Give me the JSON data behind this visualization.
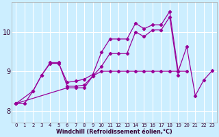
{
  "xlabel": "Windchill (Refroidissement éolien,°C)",
  "background_color": "#cceeff",
  "grid_color": "#ffffff",
  "line_color": "#990099",
  "xlim": [
    -0.5,
    23.5
  ],
  "ylim": [
    7.7,
    10.75
  ],
  "yticks": [
    8,
    9,
    10
  ],
  "xticks": [
    0,
    1,
    2,
    3,
    4,
    5,
    6,
    7,
    8,
    9,
    10,
    11,
    12,
    13,
    14,
    15,
    16,
    17,
    18,
    19,
    20,
    21,
    22,
    23
  ],
  "series": [
    {
      "x": [
        0,
        1,
        2,
        3,
        4,
        5,
        6,
        7,
        8,
        9,
        10,
        11,
        12,
        13,
        14,
        15,
        16,
        17,
        18,
        19
      ],
      "y": [
        8.18,
        8.18,
        8.5,
        8.9,
        9.2,
        9.2,
        8.72,
        8.75,
        8.8,
        8.92,
        9.48,
        9.82,
        9.82,
        9.82,
        10.22,
        10.08,
        10.18,
        10.18,
        10.52,
        9.0
      ]
    },
    {
      "x": [
        0,
        2,
        3,
        4,
        5,
        6,
        7,
        8,
        9,
        10,
        11,
        12,
        13,
        14,
        15,
        16,
        17,
        18,
        19
      ],
      "y": [
        8.18,
        8.5,
        8.9,
        9.22,
        9.22,
        8.62,
        8.62,
        8.65,
        8.88,
        9.12,
        9.45,
        9.45,
        9.45,
        10.0,
        9.88,
        10.05,
        10.05,
        10.38,
        8.9
      ]
    },
    {
      "x": [
        0,
        6,
        7,
        8,
        9,
        10,
        11,
        12,
        13,
        14,
        15,
        16,
        17,
        18,
        19,
        20
      ],
      "y": [
        8.18,
        8.58,
        8.58,
        8.58,
        8.88,
        9.0,
        9.0,
        9.0,
        9.0,
        9.0,
        9.0,
        9.0,
        9.0,
        9.0,
        9.0,
        9.0
      ]
    },
    {
      "x": [
        19,
        20,
        21,
        22,
        23
      ],
      "y": [
        9.0,
        9.62,
        8.38,
        8.78,
        9.02
      ]
    }
  ]
}
